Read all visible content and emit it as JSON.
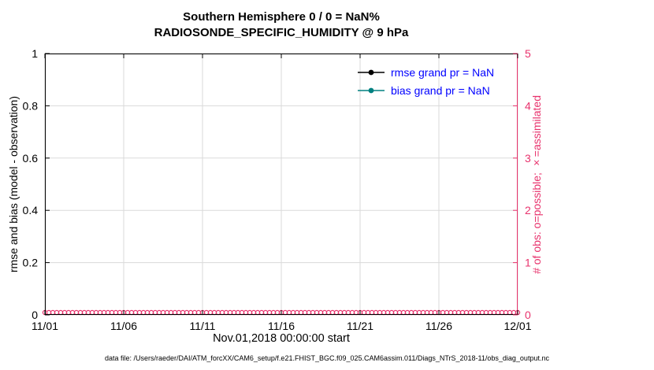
{
  "chart_data": {
    "type": "line",
    "title_line1": "Southern Hemisphere 0 / 0 = NaN%",
    "title_line2": "RADIOSONDE_SPECIFIC_HUMIDITY @ 9 hPa",
    "xlabel": "Nov.01,2018 00:00:00 start",
    "ylabel_left": "rmse and bias (model - observation)",
    "ylabel_right": "# of obs: o=possible; ×=assimilated",
    "x_range": [
      0,
      30
    ],
    "x_tick_positions": [
      0,
      5,
      10,
      15,
      20,
      25,
      30
    ],
    "x_tick_labels": [
      "11/01",
      "11/06",
      "11/11",
      "11/16",
      "11/21",
      "11/26",
      "12/01"
    ],
    "y_left": {
      "range": [
        0,
        1
      ],
      "ticks": [
        0,
        0.2,
        0.4,
        0.6,
        0.8,
        1
      ],
      "labels": [
        "0",
        "0.2",
        "0.4",
        "0.6",
        "0.8",
        "1"
      ]
    },
    "y_right": {
      "range": [
        0,
        5
      ],
      "ticks": [
        0,
        1,
        2,
        3,
        4,
        5
      ],
      "labels": [
        "0",
        "1",
        "2",
        "3",
        "4",
        "5"
      ]
    },
    "series": [
      {
        "name": "rmse grand pr = NaN",
        "color": "#000000",
        "values": []
      },
      {
        "name": "bias grand pr = NaN",
        "color": "#008080",
        "values": []
      }
    ],
    "obs_markers": {
      "axis": "right",
      "value": 0,
      "marker": "o",
      "count": 121,
      "color": "#e8336d"
    },
    "grid": true,
    "legend_position": "upper-right-inside",
    "colors": {
      "left_axis": "#000000",
      "right_axis": "#e8336d",
      "legend_text": "#0000ff",
      "grid": "#dadada"
    },
    "caption": "data file: /Users/raeder/DAI/ATM_forcXX/CAM6_setup/f.e21.FHIST_BGC.f09_025.CAM6assim.011/Diags_NTrS_2018-11/obs_diag_output.nc"
  }
}
